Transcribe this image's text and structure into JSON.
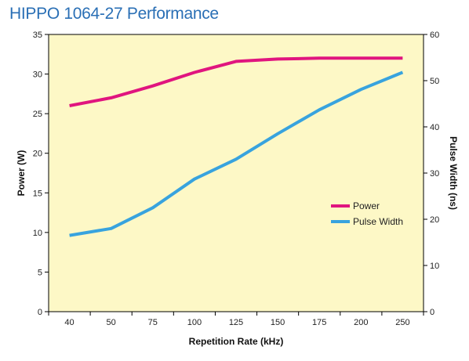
{
  "title": "HIPPO 1064-27 Performance",
  "chart_data": {
    "type": "line",
    "title": "HIPPO 1064-27 Performance",
    "xlabel": "Repetition Rate (kHz)",
    "ylabel": "Power (W)",
    "y2label": "Pulse Width (ns)",
    "categories": [
      "40",
      "50",
      "75",
      "100",
      "125",
      "150",
      "175",
      "200",
      "250"
    ],
    "ylim": [
      0,
      35
    ],
    "y2lim": [
      0,
      60
    ],
    "yticks": [
      0,
      5,
      10,
      15,
      20,
      25,
      30,
      35
    ],
    "y2ticks": [
      0,
      10,
      20,
      30,
      40,
      50,
      60
    ],
    "grid": false,
    "legend_position": "right",
    "plot_background": "#fdf8c6",
    "series": [
      {
        "name": "Power",
        "axis": "left",
        "color": "#e0157f",
        "values": [
          26.0,
          27.0,
          28.5,
          30.2,
          31.6,
          31.9,
          32.0,
          32.0,
          32.0
        ]
      },
      {
        "name": "Pulse Width",
        "axis": "right",
        "color": "#38a3de",
        "values": [
          16.5,
          18.0,
          22.5,
          28.7,
          33.0,
          38.5,
          43.7,
          48.1,
          51.8
        ]
      }
    ]
  }
}
